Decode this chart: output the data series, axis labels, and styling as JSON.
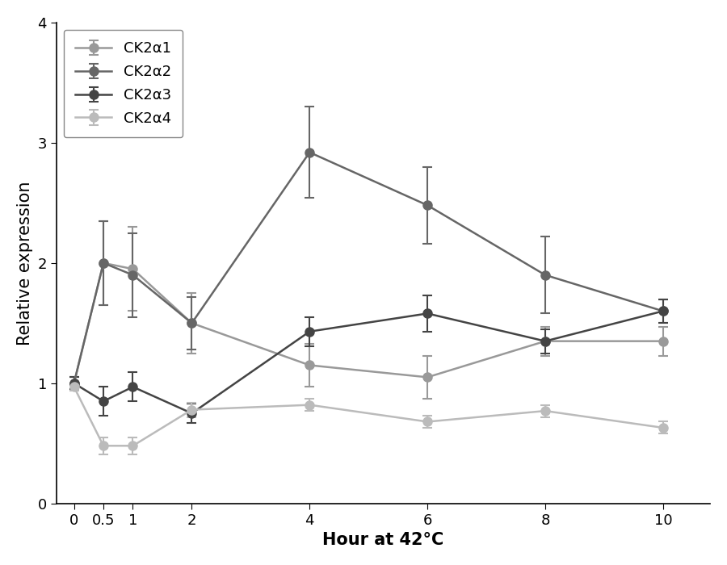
{
  "x": [
    0,
    0.5,
    1,
    2,
    4,
    6,
    8,
    10
  ],
  "series": [
    {
      "label": "CK2α1",
      "y": [
        1.0,
        2.0,
        1.95,
        1.5,
        1.15,
        1.05,
        1.35,
        1.35
      ],
      "yerr": [
        0.05,
        0.35,
        0.35,
        0.25,
        0.18,
        0.18,
        0.12,
        0.12
      ],
      "color": "#999999",
      "linewidth": 1.8,
      "markersize": 8
    },
    {
      "label": "CK2α2",
      "y": [
        1.0,
        2.0,
        1.9,
        1.5,
        2.92,
        2.48,
        1.9,
        1.6
      ],
      "yerr": [
        0.05,
        0.35,
        0.35,
        0.22,
        0.38,
        0.32,
        0.32,
        0.1
      ],
      "color": "#666666",
      "linewidth": 1.8,
      "markersize": 8
    },
    {
      "label": "CK2α3",
      "y": [
        1.0,
        0.85,
        0.97,
        0.75,
        1.43,
        1.58,
        1.35,
        1.6
      ],
      "yerr": [
        0.05,
        0.12,
        0.12,
        0.08,
        0.12,
        0.15,
        0.1,
        0.1
      ],
      "color": "#444444",
      "linewidth": 1.8,
      "markersize": 8
    },
    {
      "label": "CK2α4",
      "y": [
        0.97,
        0.48,
        0.48,
        0.78,
        0.82,
        0.68,
        0.77,
        0.63
      ],
      "yerr": [
        0.03,
        0.07,
        0.07,
        0.06,
        0.05,
        0.05,
        0.05,
        0.05
      ],
      "color": "#bbbbbb",
      "linewidth": 1.8,
      "markersize": 8
    }
  ],
  "xlabel": "Hour at 42°C",
  "ylabel": "Relative expression",
  "ylim": [
    0,
    4
  ],
  "yticks": [
    0,
    1,
    2,
    3,
    4
  ],
  "xticks": [
    0,
    0.5,
    1,
    2,
    4,
    6,
    8,
    10
  ],
  "xticklabels": [
    "0",
    "0.5",
    "1",
    "2",
    "4",
    "6",
    "8",
    "10"
  ],
  "label_fontsize": 15,
  "tick_fontsize": 13,
  "legend_fontsize": 13,
  "background_color": "#ffffff",
  "xlim": [
    -0.3,
    10.8
  ]
}
